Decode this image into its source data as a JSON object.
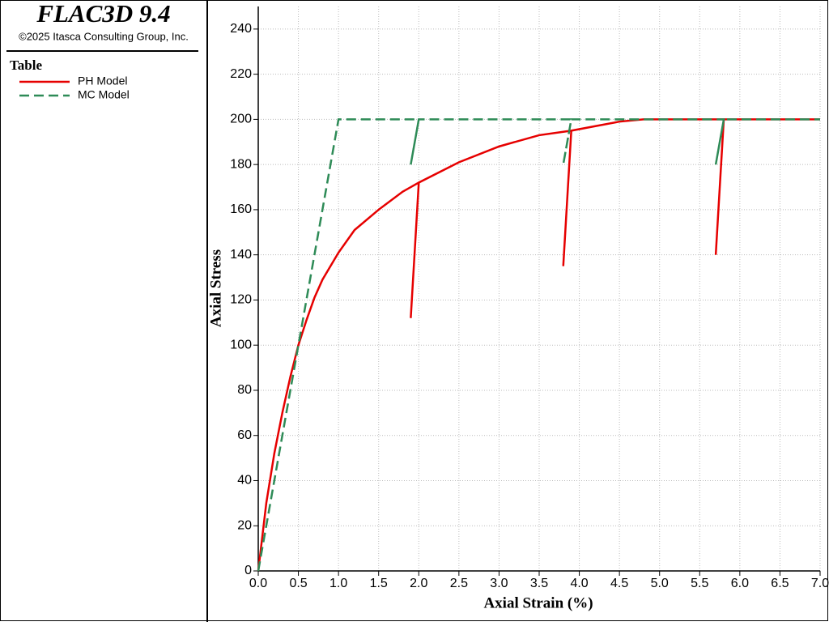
{
  "header": {
    "title": "FLAC3D 9.4",
    "copyright": "©2025 Itasca Consulting Group, Inc."
  },
  "chart_data": {
    "type": "line",
    "legend_title": "Table",
    "x_label": "Axial Strain (%)",
    "y_label": "Axial Stress",
    "xlim": [
      0,
      7
    ],
    "ylim": [
      0,
      250
    ],
    "xticks": [
      {
        "value": 0,
        "label": "0.0"
      },
      0.5,
      {
        "value": 1,
        "label": "1.0"
      },
      1.5,
      {
        "value": 2,
        "label": "2.0"
      },
      2.5,
      {
        "value": 3,
        "label": "3.0"
      },
      3.5,
      {
        "value": 4,
        "label": "4.0"
      },
      4.5,
      {
        "value": 5,
        "label": "5.0"
      },
      5.5,
      {
        "value": 6,
        "label": "6.0"
      },
      6.5,
      {
        "value": 7,
        "label": "7.0"
      }
    ],
    "yticks": [
      0,
      20,
      40,
      60,
      80,
      100,
      120,
      140,
      160,
      180,
      200,
      220,
      240
    ],
    "grid": true,
    "series": [
      {
        "name": "PH Model",
        "color": "#e60000",
        "line_style": "solid",
        "x": [
          0,
          0.1,
          0.2,
          0.3,
          0.4,
          0.5,
          0.6,
          0.7,
          0.8,
          1.0,
          1.2,
          1.5,
          1.8,
          2.0,
          1.9,
          2.0,
          2.5,
          3.0,
          3.5,
          3.9,
          3.8,
          3.9,
          4.2,
          4.5,
          4.8,
          5.8,
          5.7,
          5.8,
          7.0
        ],
        "values": [
          0,
          30,
          52,
          70,
          86,
          100,
          111,
          121,
          129,
          141,
          151,
          160,
          168,
          172,
          112,
          172,
          181,
          188,
          193,
          195,
          135,
          195,
          197,
          199,
          200,
          200,
          140,
          200,
          200
        ]
      },
      {
        "name": "MC Model",
        "color": "#2e8b57",
        "line_style": "dashed",
        "x": [
          0,
          1.0,
          2.0,
          1.9,
          2.0,
          3.9,
          3.8,
          3.9,
          5.8,
          5.7,
          5.8,
          7.0
        ],
        "values": [
          0,
          200,
          200,
          180,
          200,
          200,
          180,
          200,
          200,
          180,
          200,
          200
        ]
      }
    ]
  }
}
